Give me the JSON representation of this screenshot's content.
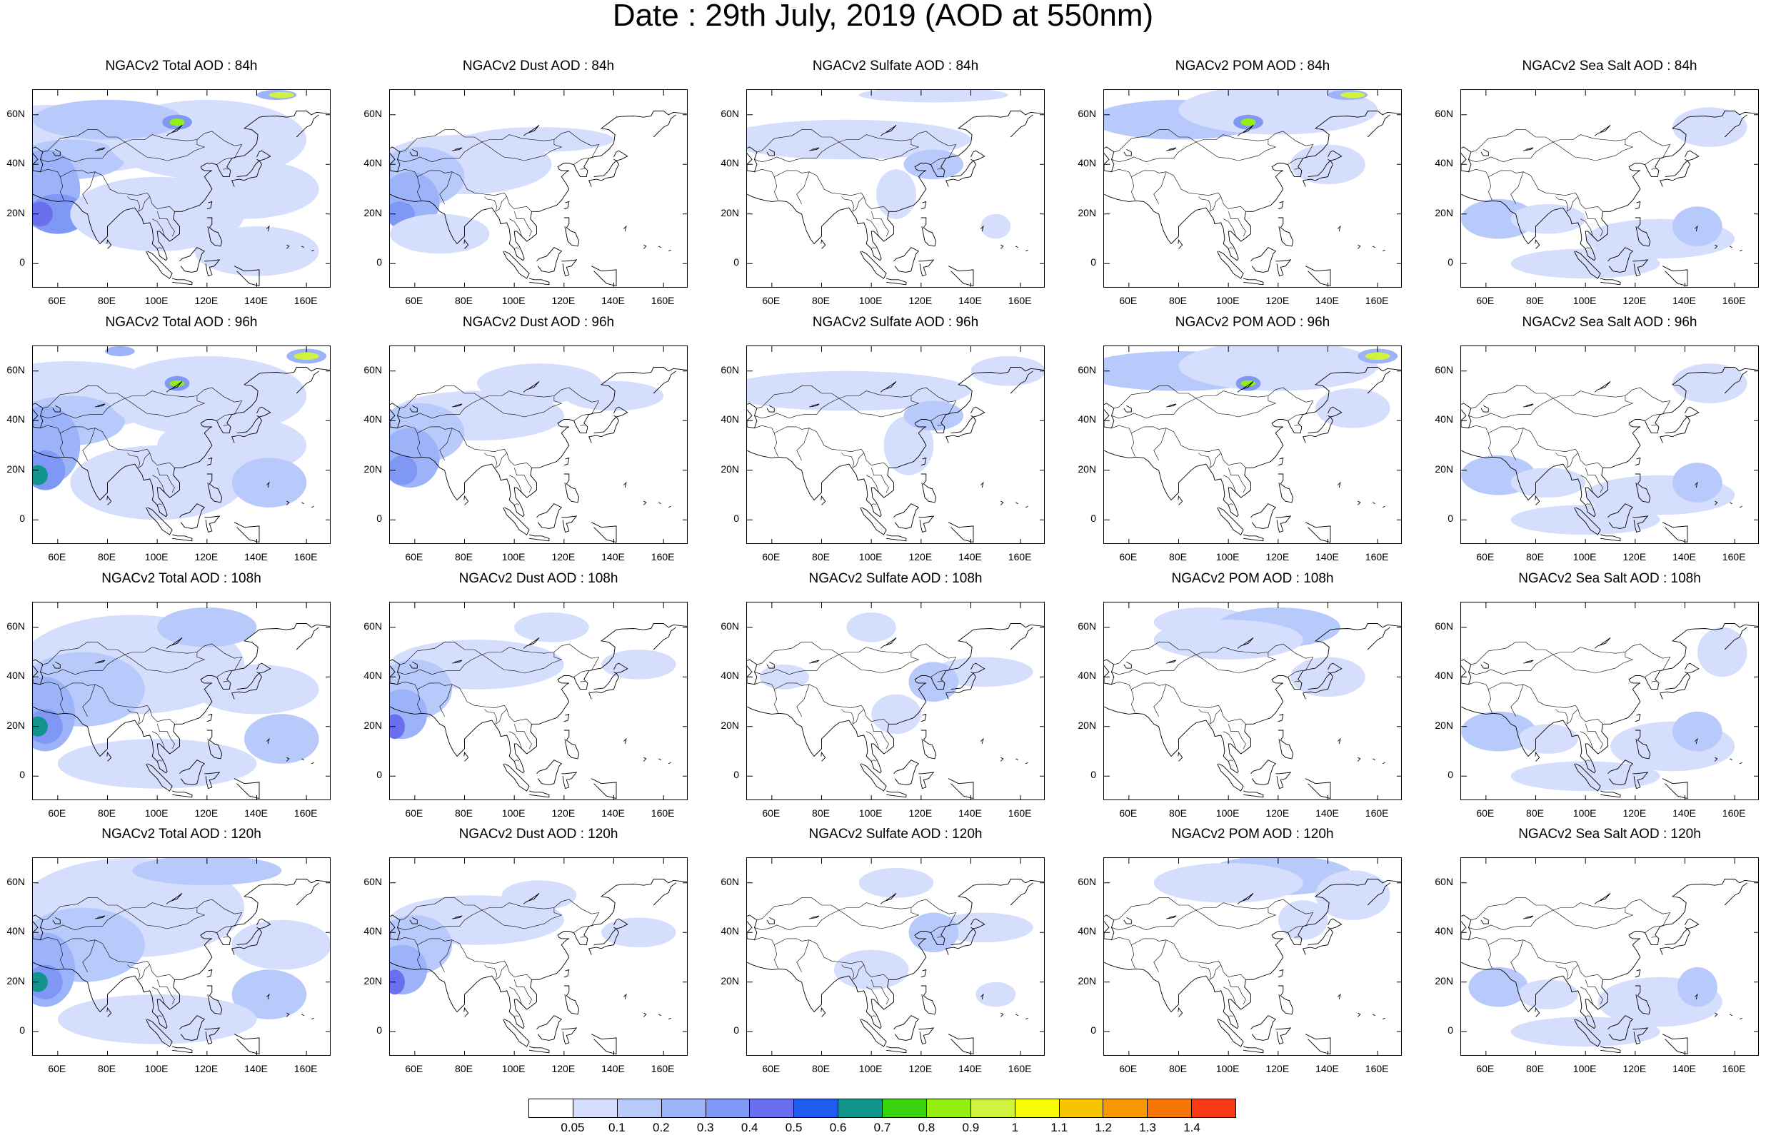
{
  "title": "Date : 29th July, 2019 (AOD at 550nm)",
  "lat_ticks": [
    "60N",
    "40N",
    "20N",
    "0"
  ],
  "lon_ticks": [
    "60E",
    "80E",
    "100E",
    "120E",
    "140E",
    "160E"
  ],
  "panels": [
    [
      "NGACv2 Total AOD : 84h",
      "NGACv2 Dust AOD : 84h",
      "NGACv2 Sulfate AOD : 84h",
      "NGACv2 POM AOD : 84h",
      "NGACv2 Sea Salt AOD : 84h"
    ],
    [
      "NGACv2 Total AOD : 96h",
      "NGACv2 Dust AOD : 96h",
      "NGACv2 Sulfate AOD : 96h",
      "NGACv2 POM AOD : 96h",
      "NGACv2 Sea Salt AOD : 96h"
    ],
    [
      "NGACv2 Total AOD : 108h",
      "NGACv2 Dust AOD : 108h",
      "NGACv2 Sulfate AOD : 108h",
      "NGACv2 POM AOD : 108h",
      "NGACv2 Sea Salt AOD : 108h"
    ],
    [
      "NGACv2 Total AOD : 120h",
      "NGACv2 Dust AOD : 120h",
      "NGACv2 Sulfate AOD : 120h",
      "NGACv2 POM AOD : 120h",
      "NGACv2 Sea Salt  AOD : 120h"
    ]
  ],
  "colorbar": {
    "labels": [
      "0.05",
      "0.1",
      "0.2",
      "0.3",
      "0.4",
      "0.5",
      "0.6",
      "0.7",
      "0.8",
      "0.9",
      "1",
      "1.1",
      "1.2",
      "1.3",
      "1.4"
    ],
    "colors": [
      "#ffffff",
      "#d5defc",
      "#b8c9fb",
      "#9db3f9",
      "#7f98f5",
      "#6a6ff0",
      "#1f5cf2",
      "#10948c",
      "#3ad40f",
      "#94ef10",
      "#d0f43d",
      "#fafc05",
      "#f7c400",
      "#f79800",
      "#f87606",
      "#f83a16"
    ]
  }
}
